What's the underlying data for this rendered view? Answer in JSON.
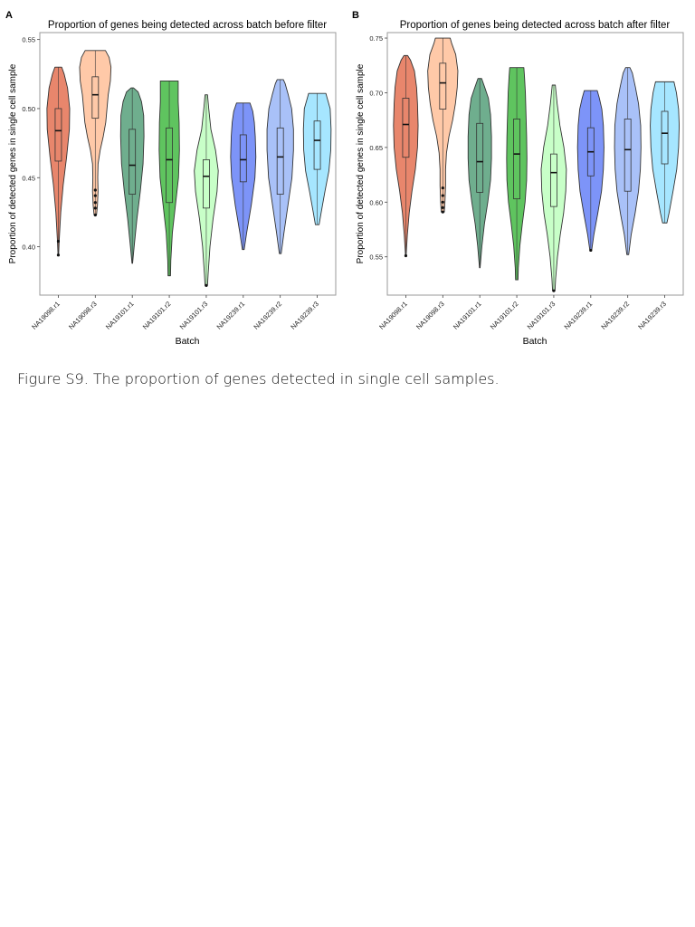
{
  "figure": {
    "caption": "Figure S9. The proportion of genes detected in single cell samples."
  },
  "chart_data": [
    {
      "panel": "A",
      "type": "violin",
      "title": "Proportion of genes being detected across batch before filter",
      "xlabel": "Batch",
      "ylabel": "Proportion of detected genes in single cell sample",
      "ylim": [
        0.365,
        0.555
      ],
      "yticks": [
        0.4,
        0.45,
        0.5,
        0.55
      ],
      "ytick_labels": [
        "0.40",
        "0.45",
        "0.50",
        "0.55"
      ],
      "grid": false,
      "categories": [
        "NA19098.r1",
        "NA19098.r3",
        "NA19101.r1",
        "NA19101.r2",
        "NA19101.r3",
        "NA19239.r1",
        "NA19239.r2",
        "NA19239.r3"
      ],
      "colors": [
        "#E8866C",
        "#FFC9A8",
        "#6FAE8E",
        "#5FC45F",
        "#C8FFC8",
        "#7D94F8",
        "#A9C1F8",
        "#A6E6FF"
      ],
      "series": [
        {
          "category": "NA19098.r1",
          "min": 0.394,
          "max": 0.53,
          "q1": 0.462,
          "median": 0.484,
          "q3": 0.5,
          "profile": [
            [
              0.394,
              0.2
            ],
            [
              0.405,
              0.6
            ],
            [
              0.425,
              1.6
            ],
            [
              0.445,
              3.2
            ],
            [
              0.465,
              5.4
            ],
            [
              0.485,
              7.2
            ],
            [
              0.5,
              7.4
            ],
            [
              0.515,
              6.0
            ],
            [
              0.525,
              3.8
            ],
            [
              0.53,
              2.2
            ]
          ],
          "outliers": [
            0.394,
            0.404
          ]
        },
        {
          "category": "NA19098.r3",
          "min": 0.423,
          "max": 0.542,
          "q1": 0.493,
          "median": 0.51,
          "q3": 0.523,
          "profile": [
            [
              0.423,
              0.8
            ],
            [
              0.43,
              1.4
            ],
            [
              0.44,
              1.8
            ],
            [
              0.45,
              1.6
            ],
            [
              0.46,
              1.8
            ],
            [
              0.47,
              3.2
            ],
            [
              0.48,
              5.2
            ],
            [
              0.49,
              6.8
            ],
            [
              0.5,
              7.6
            ],
            [
              0.51,
              8.4
            ],
            [
              0.52,
              9.8
            ],
            [
              0.53,
              10.2
            ],
            [
              0.537,
              9.0
            ],
            [
              0.542,
              6.6
            ]
          ],
          "outliers": [
            0.423,
            0.428,
            0.432,
            0.437,
            0.441
          ]
        },
        {
          "category": "NA19101.r1",
          "min": 0.388,
          "max": 0.515,
          "q1": 0.438,
          "median": 0.459,
          "q3": 0.485,
          "profile": [
            [
              0.388,
              0.2
            ],
            [
              0.4,
              1.2
            ],
            [
              0.42,
              3.0
            ],
            [
              0.44,
              5.2
            ],
            [
              0.46,
              7.0
            ],
            [
              0.48,
              7.6
            ],
            [
              0.495,
              7.4
            ],
            [
              0.505,
              6.0
            ],
            [
              0.512,
              3.8
            ],
            [
              0.515,
              0.8
            ]
          ],
          "outliers": []
        },
        {
          "category": "NA19101.r2",
          "min": 0.379,
          "max": 0.52,
          "q1": 0.432,
          "median": 0.463,
          "q3": 0.486,
          "profile": [
            [
              0.379,
              0.8
            ],
            [
              0.39,
              1.0
            ],
            [
              0.41,
              2.0
            ],
            [
              0.43,
              4.0
            ],
            [
              0.45,
              6.0
            ],
            [
              0.47,
              6.6
            ],
            [
              0.49,
              6.4
            ],
            [
              0.505,
              5.8
            ],
            [
              0.515,
              5.8
            ],
            [
              0.52,
              5.8
            ]
          ],
          "outliers": []
        },
        {
          "category": "NA19101.r3",
          "min": 0.372,
          "max": 0.51,
          "q1": 0.428,
          "median": 0.451,
          "q3": 0.463,
          "profile": [
            [
              0.372,
              0.8
            ],
            [
              0.38,
              1.2
            ],
            [
              0.4,
              2.4
            ],
            [
              0.42,
              4.4
            ],
            [
              0.44,
              7.0
            ],
            [
              0.455,
              7.8
            ],
            [
              0.47,
              6.0
            ],
            [
              0.485,
              3.0
            ],
            [
              0.5,
              1.6
            ],
            [
              0.51,
              0.8
            ]
          ],
          "outliers": [
            0.372
          ]
        },
        {
          "category": "NA19239.r1",
          "min": 0.398,
          "max": 0.504,
          "q1": 0.447,
          "median": 0.463,
          "q3": 0.481,
          "profile": [
            [
              0.398,
              0.6
            ],
            [
              0.41,
              2.2
            ],
            [
              0.43,
              5.2
            ],
            [
              0.45,
              7.6
            ],
            [
              0.465,
              8.2
            ],
            [
              0.48,
              7.8
            ],
            [
              0.49,
              7.2
            ],
            [
              0.498,
              6.2
            ],
            [
              0.504,
              4.4
            ]
          ],
          "outliers": []
        },
        {
          "category": "NA19239.r2",
          "min": 0.395,
          "max": 0.521,
          "q1": 0.438,
          "median": 0.465,
          "q3": 0.486,
          "profile": [
            [
              0.395,
              0.6
            ],
            [
              0.41,
              2.4
            ],
            [
              0.43,
              5.0
            ],
            [
              0.45,
              7.6
            ],
            [
              0.47,
              8.6
            ],
            [
              0.485,
              8.6
            ],
            [
              0.5,
              7.4
            ],
            [
              0.51,
              5.2
            ],
            [
              0.518,
              3.2
            ],
            [
              0.521,
              2.0
            ]
          ],
          "outliers": []
        },
        {
          "category": "NA19239.r3",
          "min": 0.416,
          "max": 0.511,
          "q1": 0.456,
          "median": 0.477,
          "q3": 0.491,
          "profile": [
            [
              0.416,
              1.2
            ],
            [
              0.425,
              2.6
            ],
            [
              0.44,
              5.0
            ],
            [
              0.455,
              7.6
            ],
            [
              0.47,
              8.8
            ],
            [
              0.485,
              9.0
            ],
            [
              0.5,
              8.4
            ],
            [
              0.507,
              6.6
            ],
            [
              0.511,
              5.6
            ]
          ],
          "outliers": []
        }
      ]
    },
    {
      "panel": "B",
      "type": "violin",
      "title": "Proportion of genes being detected across batch after filter",
      "xlabel": "Batch",
      "ylabel": "Proportion of detected genes in single cell sample",
      "ylim": [
        0.515,
        0.755
      ],
      "yticks": [
        0.55,
        0.6,
        0.65,
        0.7,
        0.75
      ],
      "ytick_labels": [
        "0.55",
        "0.60",
        "0.65",
        "0.70",
        "0.75"
      ],
      "grid": false,
      "categories": [
        "NA19098.r1",
        "NA19098.r3",
        "NA19101.r1",
        "NA19101.r2",
        "NA19101.r3",
        "NA19239.r1",
        "NA19239.r2",
        "NA19239.r3"
      ],
      "colors": [
        "#E8866C",
        "#FFC9A8",
        "#6FAE8E",
        "#5FC45F",
        "#C8FFC8",
        "#7D94F8",
        "#A9C1F8",
        "#A6E6FF"
      ],
      "series": [
        {
          "category": "NA19098.r1",
          "min": 0.551,
          "max": 0.734,
          "q1": 0.641,
          "median": 0.671,
          "q3": 0.695,
          "profile": [
            [
              0.551,
              0.2
            ],
            [
              0.57,
              1.0
            ],
            [
              0.59,
              2.2
            ],
            [
              0.61,
              4.0
            ],
            [
              0.63,
              6.2
            ],
            [
              0.65,
              7.6
            ],
            [
              0.67,
              8.0
            ],
            [
              0.69,
              7.6
            ],
            [
              0.705,
              7.0
            ],
            [
              0.72,
              5.6
            ],
            [
              0.73,
              3.0
            ],
            [
              0.734,
              1.2
            ]
          ],
          "outliers": [
            0.551
          ]
        },
        {
          "category": "NA19098.r3",
          "min": 0.591,
          "max": 0.75,
          "q1": 0.685,
          "median": 0.709,
          "q3": 0.727,
          "profile": [
            [
              0.591,
              1.0
            ],
            [
              0.6,
              1.4
            ],
            [
              0.615,
              1.8
            ],
            [
              0.63,
              1.8
            ],
            [
              0.645,
              2.4
            ],
            [
              0.66,
              4.0
            ],
            [
              0.675,
              6.4
            ],
            [
              0.69,
              8.2
            ],
            [
              0.705,
              9.4
            ],
            [
              0.72,
              9.8
            ],
            [
              0.735,
              8.4
            ],
            [
              0.745,
              5.8
            ],
            [
              0.75,
              4.8
            ]
          ],
          "outliers": [
            0.591,
            0.595,
            0.6,
            0.606,
            0.613
          ]
        },
        {
          "category": "NA19101.r1",
          "min": 0.54,
          "max": 0.713,
          "q1": 0.609,
          "median": 0.637,
          "q3": 0.672,
          "profile": [
            [
              0.54,
              0.2
            ],
            [
              0.56,
              1.4
            ],
            [
              0.58,
              3.0
            ],
            [
              0.6,
              5.2
            ],
            [
              0.62,
              7.0
            ],
            [
              0.64,
              7.6
            ],
            [
              0.66,
              7.6
            ],
            [
              0.68,
              7.0
            ],
            [
              0.695,
              5.6
            ],
            [
              0.705,
              3.2
            ],
            [
              0.713,
              1.2
            ]
          ],
          "outliers": []
        },
        {
          "category": "NA19101.r2",
          "min": 0.529,
          "max": 0.723,
          "q1": 0.603,
          "median": 0.644,
          "q3": 0.676,
          "profile": [
            [
              0.529,
              0.8
            ],
            [
              0.54,
              1.0
            ],
            [
              0.56,
              2.0
            ],
            [
              0.58,
              3.6
            ],
            [
              0.6,
              5.4
            ],
            [
              0.62,
              6.4
            ],
            [
              0.64,
              6.6
            ],
            [
              0.66,
              6.4
            ],
            [
              0.68,
              6.0
            ],
            [
              0.7,
              5.6
            ],
            [
              0.715,
              5.0
            ],
            [
              0.723,
              4.6
            ]
          ],
          "outliers": []
        },
        {
          "category": "NA19101.r3",
          "min": 0.519,
          "max": 0.707,
          "q1": 0.596,
          "median": 0.627,
          "q3": 0.644,
          "profile": [
            [
              0.519,
              0.8
            ],
            [
              0.53,
              1.2
            ],
            [
              0.55,
              2.4
            ],
            [
              0.57,
              4.2
            ],
            [
              0.59,
              6.4
            ],
            [
              0.61,
              7.8
            ],
            [
              0.63,
              8.2
            ],
            [
              0.65,
              6.6
            ],
            [
              0.67,
              4.0
            ],
            [
              0.69,
              2.2
            ],
            [
              0.707,
              1.0
            ]
          ],
          "outliers": [
            0.519
          ]
        },
        {
          "category": "NA19239.r1",
          "min": 0.556,
          "max": 0.702,
          "q1": 0.624,
          "median": 0.646,
          "q3": 0.668,
          "profile": [
            [
              0.556,
              0.6
            ],
            [
              0.57,
              2.0
            ],
            [
              0.59,
              4.6
            ],
            [
              0.61,
              7.0
            ],
            [
              0.63,
              8.2
            ],
            [
              0.65,
              8.6
            ],
            [
              0.67,
              8.2
            ],
            [
              0.685,
              7.2
            ],
            [
              0.695,
              5.6
            ],
            [
              0.702,
              4.2
            ]
          ],
          "outliers": [
            0.556
          ]
        },
        {
          "category": "NA19239.r2",
          "min": 0.552,
          "max": 0.723,
          "q1": 0.61,
          "median": 0.648,
          "q3": 0.676,
          "profile": [
            [
              0.552,
              0.6
            ],
            [
              0.57,
              2.2
            ],
            [
              0.59,
              4.8
            ],
            [
              0.61,
              7.0
            ],
            [
              0.63,
              8.2
            ],
            [
              0.65,
              8.6
            ],
            [
              0.67,
              8.4
            ],
            [
              0.69,
              7.0
            ],
            [
              0.705,
              5.0
            ],
            [
              0.718,
              3.0
            ],
            [
              0.723,
              1.4
            ]
          ],
          "outliers": []
        },
        {
          "category": "NA19239.r3",
          "min": 0.581,
          "max": 0.71,
          "q1": 0.635,
          "median": 0.663,
          "q3": 0.683,
          "profile": [
            [
              0.581,
              1.4
            ],
            [
              0.59,
              2.8
            ],
            [
              0.61,
              5.4
            ],
            [
              0.63,
              7.8
            ],
            [
              0.65,
              9.0
            ],
            [
              0.67,
              9.4
            ],
            [
              0.685,
              9.0
            ],
            [
              0.7,
              7.6
            ],
            [
              0.71,
              6.0
            ]
          ],
          "outliers": []
        }
      ]
    }
  ]
}
